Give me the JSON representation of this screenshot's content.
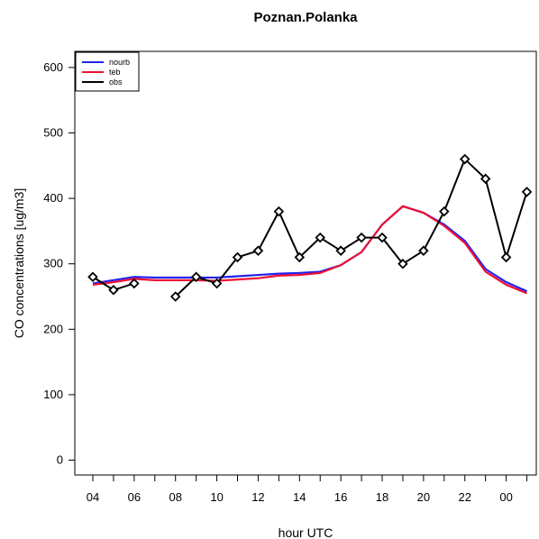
{
  "chart_data": {
    "type": "line",
    "title": "Poznan.Polanka",
    "xlabel": "hour UTC",
    "ylabel": "CO concentrations [ug/m3]",
    "ylim": [
      -20,
      630
    ],
    "y_ticks": [
      "0",
      "100",
      "200",
      "300",
      "400",
      "500",
      "600"
    ],
    "x_tick_labels": [
      "04",
      "06",
      "08",
      "10",
      "12",
      "14",
      "16",
      "18",
      "20",
      "22",
      "00"
    ],
    "x_hours": [
      4,
      5,
      6,
      7,
      8,
      9,
      10,
      11,
      12,
      13,
      14,
      15,
      16,
      17,
      18,
      19,
      20,
      21,
      22,
      23,
      0,
      1
    ],
    "legend_position": "top-left",
    "series": [
      {
        "name": "nourb",
        "color": "#2222ee",
        "marker": "none",
        "values": [
          270,
          275,
          280,
          279,
          279,
          279,
          279,
          281,
          283,
          285,
          286,
          288,
          298,
          318,
          360,
          388,
          378,
          360,
          335,
          292,
          272,
          258
        ]
      },
      {
        "name": "teb",
        "color": "#ee1133",
        "marker": "none",
        "values": [
          268,
          272,
          277,
          275,
          275,
          275,
          274,
          276,
          278,
          282,
          283,
          286,
          298,
          318,
          360,
          388,
          378,
          358,
          332,
          288,
          268,
          255
        ]
      },
      {
        "name": "obs",
        "color": "#000000",
        "marker": "diamond",
        "values": [
          280,
          260,
          270,
          null,
          250,
          280,
          270,
          310,
          320,
          380,
          310,
          340,
          320,
          340,
          340,
          300,
          320,
          380,
          460,
          430,
          310,
          410
        ]
      }
    ]
  }
}
